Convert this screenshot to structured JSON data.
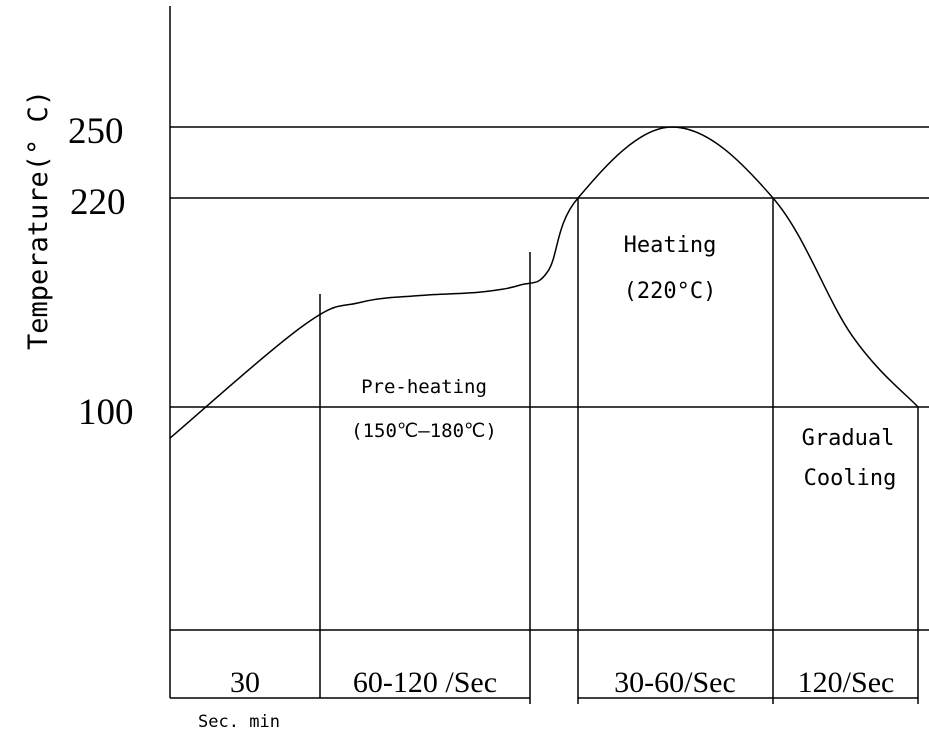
{
  "chart_data": {
    "type": "line",
    "title": "",
    "ylabel": "Temperature(° C)",
    "xlabel": "",
    "y_ticks": [
      "250",
      "220",
      "100"
    ],
    "curve": {
      "y": [
        86,
        147,
        160,
        164,
        166,
        170,
        178,
        220,
        250,
        220,
        141,
        100
      ]
    },
    "zones": [
      {
        "label_lines": [
          "Pre-heating",
          "(150℃—180℃)"
        ]
      },
      {
        "label_lines": [
          "Heating",
          "(220°C)"
        ]
      },
      {
        "label_lines": [
          "Gradual",
          "Cooling"
        ]
      }
    ],
    "time_segments": [
      "30",
      "60-120 /Sec",
      "30-60/Sec",
      "120/Sec"
    ],
    "time_note": "Sec. min"
  }
}
